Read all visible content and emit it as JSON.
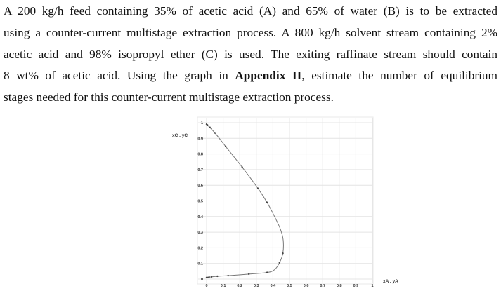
{
  "problem": {
    "lines": [
      "A 200 kg/h feed containing 35% of acetic acid (A) and 65% of water (B) is to be extracted",
      "using a counter-current multistage extraction process. A 800 kg/h solvent stream containing 2%",
      "acetic acid and 98% isopropyl ether (C) is used. The exiting raffinate stream should contain",
      "8 wt% of acetic acid. Using the graph in "
    ],
    "bold": "Appendix II",
    "line4_tail": ", estimate the number of equilibrium",
    "line5": "stages needed for this counter-current multistage extraction process."
  },
  "chart_data": {
    "type": "line",
    "xlabel": "xA , yA",
    "ylabel": "xC , yC",
    "xlim": [
      0,
      1
    ],
    "ylim": [
      0,
      1
    ],
    "xticks": [
      "0",
      "0.1",
      "0.2",
      "0.3",
      "0.4",
      "0.5",
      "0.6",
      "0.7",
      "0.8",
      "0.9",
      "1"
    ],
    "yticks": [
      "0",
      "0.1",
      "0.2",
      "0.3",
      "0.4",
      "0.5",
      "0.6",
      "0.7",
      "0.8",
      "0.9",
      "1"
    ],
    "grid": true,
    "points": [
      [
        0.0,
        0.99
      ],
      [
        0.005,
        0.985
      ],
      [
        0.02,
        0.97
      ],
      [
        0.05,
        0.935
      ],
      [
        0.115,
        0.848
      ],
      [
        0.215,
        0.715
      ],
      [
        0.31,
        0.58
      ],
      [
        0.365,
        0.49
      ],
      [
        0.46,
        0.165
      ],
      [
        0.44,
        0.105
      ],
      [
        0.365,
        0.042
      ],
      [
        0.255,
        0.032
      ],
      [
        0.13,
        0.022
      ],
      [
        0.065,
        0.018
      ],
      [
        0.03,
        0.014
      ],
      [
        0.015,
        0.013
      ],
      [
        0.005,
        0.01
      ],
      [
        0.0,
        0.01
      ]
    ],
    "curve": [
      [
        0.0,
        0.99
      ],
      [
        0.05,
        0.935
      ],
      [
        0.115,
        0.848
      ],
      [
        0.215,
        0.715
      ],
      [
        0.31,
        0.58
      ],
      [
        0.365,
        0.49
      ],
      [
        0.41,
        0.4
      ],
      [
        0.445,
        0.32
      ],
      [
        0.462,
        0.25
      ],
      [
        0.46,
        0.165
      ],
      [
        0.44,
        0.105
      ],
      [
        0.41,
        0.06
      ],
      [
        0.365,
        0.042
      ],
      [
        0.255,
        0.032
      ],
      [
        0.13,
        0.022
      ],
      [
        0.065,
        0.018
      ],
      [
        0.03,
        0.014
      ],
      [
        0.0,
        0.01
      ]
    ],
    "colors": {
      "line": "#777777",
      "marker": "#444444",
      "grid": "#e4e4e4"
    }
  }
}
